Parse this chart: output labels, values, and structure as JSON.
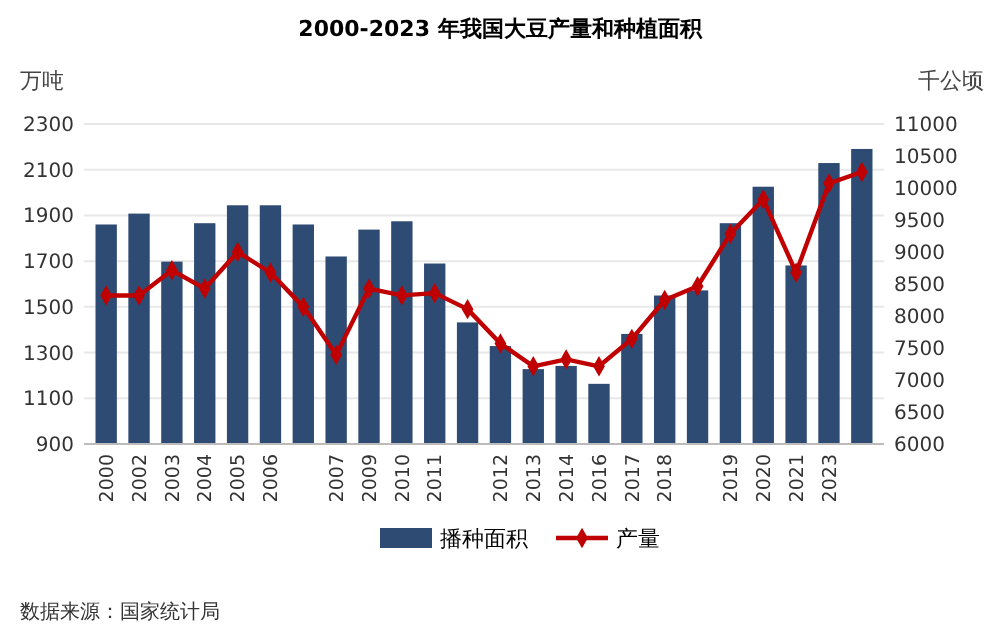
{
  "chart_data": {
    "type": "bar",
    "title": "2000-2023 年我国大豆产量和种植面积",
    "ylabel": "万吨",
    "y2label": "千公顷",
    "categories": [
      "2000",
      "2002",
      "2003",
      "2004",
      "2005",
      "2006",
      null,
      "2007",
      "2009",
      "2010",
      "2011",
      null,
      "2012",
      "2013",
      "2014",
      "2016",
      "2017",
      "2018",
      null,
      "2019",
      "2020",
      "2021",
      "2023",
      null
    ],
    "series": [
      {
        "name": "播种面积",
        "axis": "y2",
        "color": "#2e4b73",
        "values": [
          9430,
          9600,
          8850,
          9450,
          9730,
          9730,
          9430,
          8930,
          9350,
          9480,
          8820,
          7900,
          7530,
          7170,
          7220,
          6940,
          7720,
          8320,
          8400,
          9450,
          10020,
          8790,
          10390,
          10610
        ]
      },
      {
        "name": "产量",
        "type": "line",
        "axis": "y",
        "color": "#c00000",
        "marker": "diamond",
        "values": [
          1550,
          1550,
          1660,
          1580,
          1740,
          1650,
          1500,
          1290,
          1580,
          1550,
          1560,
          1490,
          1340,
          1240,
          1270,
          1240,
          1360,
          1530,
          1590,
          1820,
          1970,
          1650,
          2040,
          2090
        ]
      }
    ],
    "ylim": [
      900,
      2300
    ],
    "yticks": [
      900,
      1100,
      1300,
      1500,
      1700,
      1900,
      2100,
      2300
    ],
    "y2lim": [
      6000,
      11000
    ],
    "y2ticks": [
      6000,
      6500,
      7000,
      7500,
      8000,
      8500,
      9000,
      9500,
      10000,
      10500,
      11000
    ],
    "grid": "y",
    "legend": "bottom",
    "annotations": [
      "数据来源：国家统计局"
    ]
  }
}
